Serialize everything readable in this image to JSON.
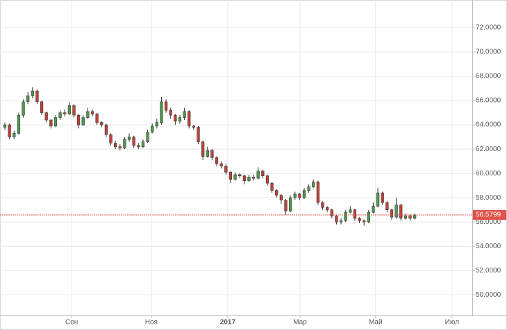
{
  "chart_data": {
    "type": "candlestick",
    "open": [
      63.8,
      64.0,
      63.0,
      63.3,
      64.8,
      65.9,
      66.4,
      66.8,
      65.9,
      65.0,
      64.4,
      63.9,
      64.6,
      65.0,
      64.9,
      65.6,
      64.8,
      64.0,
      64.6,
      65.1,
      64.9,
      64.2,
      64.0,
      63.2,
      62.5,
      62.2,
      62.1,
      62.8,
      63.0,
      62.3,
      62.2,
      62.6,
      63.4,
      63.9,
      64.2,
      65.9,
      65.2,
      64.8,
      64.3,
      64.6,
      65.1,
      63.9,
      63.8,
      62.6,
      61.4,
      61.9,
      61.3,
      60.8,
      60.6,
      60.1,
      59.5,
      59.9,
      59.8,
      59.4,
      59.7,
      59.6,
      60.2,
      59.8,
      59.2,
      58.6,
      58.2,
      57.8,
      56.9,
      58.0,
      58.3,
      58.0,
      58.6,
      58.9,
      59.3,
      57.6,
      57.2,
      57.0,
      56.5,
      56.0,
      56.1,
      56.8,
      57.0,
      56.3,
      56.1,
      56.0,
      56.8,
      57.3,
      58.4,
      57.6,
      57.0,
      56.4,
      57.4,
      56.3,
      56.5,
      56.3
    ],
    "high": [
      64.2,
      64.1,
      63.5,
      65.0,
      66.1,
      66.7,
      67.1,
      66.9,
      66.0,
      65.1,
      64.5,
      64.8,
      65.2,
      65.3,
      65.9,
      65.7,
      64.9,
      64.8,
      65.4,
      65.3,
      65.0,
      64.3,
      64.1,
      63.3,
      62.7,
      62.4,
      63.0,
      63.3,
      63.1,
      62.5,
      62.8,
      63.6,
      64.1,
      64.5,
      66.3,
      66.1,
      65.4,
      64.9,
      64.8,
      65.4,
      65.2,
      64.0,
      63.9,
      62.7,
      62.2,
      62.0,
      61.4,
      61.0,
      60.8,
      60.2,
      60.1,
      60.0,
      59.9,
      59.9,
      59.9,
      60.5,
      60.3,
      59.9,
      59.3,
      58.7,
      58.3,
      57.9,
      58.2,
      58.5,
      58.4,
      58.8,
      59.1,
      59.5,
      59.4,
      57.7,
      57.3,
      57.1,
      56.6,
      56.3,
      57.0,
      57.3,
      57.1,
      56.4,
      56.2,
      57.0,
      57.6,
      58.8,
      58.5,
      57.7,
      57.1,
      58.0,
      57.5,
      56.7,
      56.6,
      56.7
    ],
    "low": [
      63.6,
      62.8,
      62.8,
      63.2,
      64.6,
      65.7,
      66.2,
      65.7,
      64.8,
      64.2,
      63.7,
      63.8,
      64.4,
      64.7,
      64.8,
      64.6,
      63.7,
      63.9,
      64.5,
      64.7,
      64.0,
      63.8,
      63.0,
      62.3,
      62.0,
      61.9,
      62.0,
      62.6,
      62.1,
      62.0,
      62.1,
      62.5,
      63.3,
      63.7,
      64.0,
      65.0,
      64.5,
      64.0,
      64.1,
      64.4,
      63.7,
      63.6,
      62.4,
      61.1,
      61.3,
      61.1,
      60.6,
      60.4,
      59.9,
      59.2,
      59.4,
      59.6,
      59.1,
      59.3,
      59.4,
      59.5,
      59.6,
      59.0,
      58.4,
      58.0,
      57.5,
      56.6,
      56.8,
      57.8,
      57.8,
      57.9,
      58.4,
      58.8,
      57.4,
      57.0,
      56.8,
      56.3,
      55.8,
      55.8,
      56.0,
      56.7,
      56.1,
      55.9,
      55.7,
      55.9,
      56.7,
      57.2,
      57.4,
      56.8,
      56.2,
      56.3,
      56.1,
      56.2,
      56.1,
      56.2
    ],
    "close": [
      64.0,
      63.0,
      63.3,
      64.8,
      65.9,
      66.4,
      66.8,
      65.9,
      65.0,
      64.4,
      63.9,
      64.6,
      65.0,
      64.9,
      65.6,
      64.8,
      64.0,
      64.6,
      65.1,
      64.9,
      64.2,
      64.0,
      63.2,
      62.5,
      62.2,
      62.1,
      62.8,
      63.0,
      62.3,
      62.2,
      62.6,
      63.4,
      63.9,
      64.2,
      65.9,
      65.2,
      64.8,
      64.3,
      64.6,
      65.1,
      63.9,
      63.8,
      62.6,
      61.4,
      61.9,
      61.3,
      60.8,
      60.6,
      60.1,
      59.5,
      59.9,
      59.8,
      59.4,
      59.7,
      59.6,
      60.2,
      59.8,
      59.2,
      58.6,
      58.2,
      57.8,
      56.9,
      58.0,
      58.3,
      58.0,
      58.6,
      58.9,
      59.3,
      57.6,
      57.2,
      57.0,
      56.5,
      56.0,
      56.1,
      56.8,
      57.0,
      56.3,
      56.1,
      56.0,
      56.8,
      57.3,
      58.4,
      57.6,
      57.0,
      56.4,
      57.4,
      56.3,
      56.5,
      56.3,
      56.58
    ],
    "up_color": "#4f9a4f",
    "down_color": "#c2413a",
    "xlim": [
      -1.06,
      101.5
    ],
    "xticks": [
      {
        "value": 14.5,
        "label": "Сен"
      },
      {
        "value": 31.8,
        "label": "Ноя"
      },
      {
        "value": 48.4,
        "label": "2017"
      },
      {
        "value": 64.1,
        "label": "Мар"
      },
      {
        "value": 80.5,
        "label": "Май"
      },
      {
        "value": 97.1,
        "label": "Июл"
      }
    ],
    "ylim": [
      48.3,
      74.0
    ],
    "yticks": [
      {
        "value": 50,
        "label": "50.0000"
      },
      {
        "value": 52,
        "label": "52.0000"
      },
      {
        "value": 54,
        "label": "54.0000"
      },
      {
        "value": 56,
        "label": "56.0000"
      },
      {
        "value": 58,
        "label": "58.0000"
      },
      {
        "value": 60,
        "label": "60.0000"
      },
      {
        "value": 62,
        "label": "62.0000"
      },
      {
        "value": 64,
        "label": "64.0000"
      },
      {
        "value": 66,
        "label": "66.0000"
      },
      {
        "value": 68,
        "label": "68.0000"
      },
      {
        "value": 70,
        "label": "70.0000"
      },
      {
        "value": 72,
        "label": "72.0000"
      }
    ],
    "last_price": 56.5799,
    "last_price_color": "#e0524a",
    "grid": true
  }
}
